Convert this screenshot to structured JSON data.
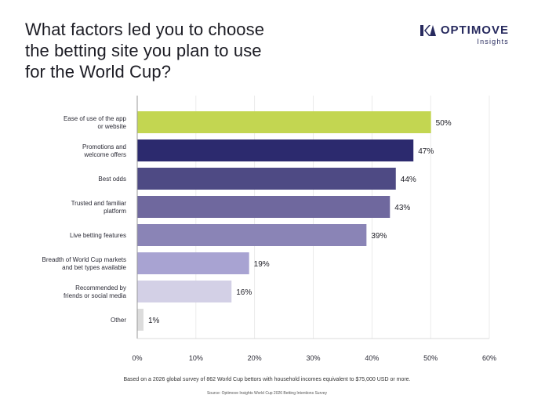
{
  "title_lines": [
    "What factors led you to choose",
    "the betting site you plan to use",
    "for the World Cup?"
  ],
  "logo": {
    "name": "OPTIMOVE",
    "sub": "Insights",
    "icon": "optimove-logo-icon",
    "color": "#272a5e"
  },
  "footnote": "Based on a 2026 global survey of 862 World Cup bettors with household incomes equivalent to $75,000 USD or more.",
  "source": "Source: Optimove Insights World Cup 2026 Betting Intentions Survey",
  "chart_data": {
    "type": "bar",
    "orientation": "horizontal",
    "categories": [
      [
        "Ease of use of the app",
        "or website"
      ],
      [
        "Promotions and",
        "welcome offers"
      ],
      [
        "Best odds"
      ],
      [
        "Trusted and familiar",
        "platform"
      ],
      [
        "Live betting features"
      ],
      [
        "Breadth of World Cup markets",
        "and bet types available"
      ],
      [
        "Recommended by",
        "friends or social media"
      ],
      [
        "Other"
      ]
    ],
    "values": [
      50,
      47,
      44,
      43,
      39,
      19,
      16,
      1
    ],
    "value_labels": [
      "50%",
      "47%",
      "44%",
      "43%",
      "39%",
      "19%",
      "16%",
      "1%"
    ],
    "colors": [
      "#c3d651",
      "#2c2a6e",
      "#4e4a84",
      "#6f689e",
      "#8a84b6",
      "#a8a3d2",
      "#d3d0e6",
      "#dcdcdc"
    ],
    "xlim": [
      0,
      60
    ],
    "xticks": [
      0,
      10,
      20,
      30,
      40,
      50,
      60
    ],
    "xtick_labels": [
      "0%",
      "10%",
      "20%",
      "30%",
      "40%",
      "50%",
      "60%"
    ],
    "grid": true
  }
}
